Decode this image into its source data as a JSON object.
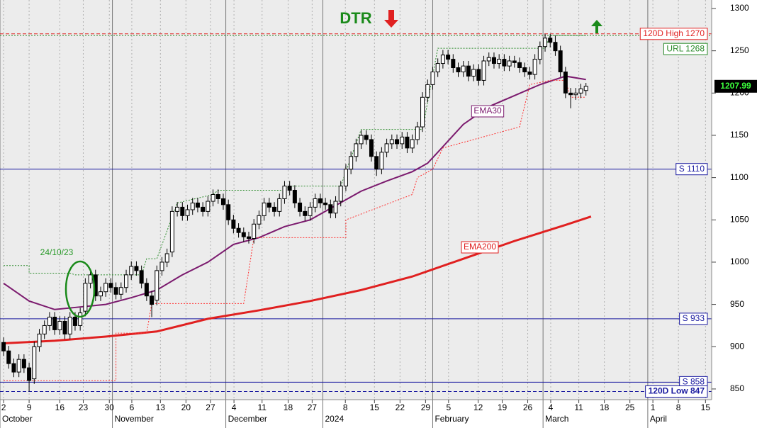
{
  "chart_data": {
    "type": "candlestick",
    "title": "DTR",
    "date_note": "24/10/23",
    "xlim": [
      -0.7,
      138.6
    ],
    "ylim": [
      838.2,
      1300
    ],
    "yticks": [
      850,
      900,
      950,
      1000,
      1050,
      1100,
      1150,
      1200,
      1250,
      1300
    ],
    "xticks": [
      {
        "value": 0,
        "label": "2"
      },
      {
        "value": 5,
        "label": "9"
      },
      {
        "value": 11,
        "label": "16"
      },
      {
        "value": 15.6,
        "label": "23"
      },
      {
        "value": 20.7,
        "label": "30"
      },
      {
        "value": 25.1,
        "label": "6"
      },
      {
        "value": 30.7,
        "label": "13"
      },
      {
        "value": 35.7,
        "label": "20"
      },
      {
        "value": 40.5,
        "label": "27"
      },
      {
        "value": 45.1,
        "label": "4"
      },
      {
        "value": 50.6,
        "label": "11"
      },
      {
        "value": 55.7,
        "label": "18"
      },
      {
        "value": 60.4,
        "label": "27"
      },
      {
        "value": 66.9,
        "label": "8"
      },
      {
        "value": 72.6,
        "label": "15"
      },
      {
        "value": 77.6,
        "label": "22"
      },
      {
        "value": 82.6,
        "label": "29"
      },
      {
        "value": 87.1,
        "label": "5"
      },
      {
        "value": 92.9,
        "label": "12"
      },
      {
        "value": 97.6,
        "label": "19"
      },
      {
        "value": 102.6,
        "label": "26"
      },
      {
        "value": 107.1,
        "label": "4"
      },
      {
        "value": 112.6,
        "label": "11"
      },
      {
        "value": 117.6,
        "label": "18"
      },
      {
        "value": 122.6,
        "label": "25"
      },
      {
        "value": 127.1,
        "label": "1"
      },
      {
        "value": 132.1,
        "label": "8"
      },
      {
        "value": 137.4,
        "label": "15"
      }
    ],
    "months": [
      {
        "value": -0.7,
        "label": "October"
      },
      {
        "value": 21.3,
        "label": "November"
      },
      {
        "value": 43.5,
        "label": "December"
      },
      {
        "value": 62.5,
        "label": "2024"
      },
      {
        "value": 84,
        "label": "February"
      },
      {
        "value": 105.6,
        "label": "March"
      },
      {
        "value": 126.1,
        "label": "April"
      }
    ],
    "up_color": "#ffffff",
    "down_color": "#000000",
    "open": [
      905,
      895,
      880,
      870,
      885,
      875,
      862,
      900,
      915,
      925,
      935,
      920,
      930,
      915,
      935,
      925,
      942,
      975,
      985,
      960,
      965,
      975,
      970,
      962,
      970,
      985,
      995,
      990,
      975,
      960,
      955,
      990,
      1000,
      1012,
      1060,
      1065,
      1055,
      1062,
      1070,
      1065,
      1060,
      1072,
      1080,
      1075,
      1068,
      1050,
      1040,
      1035,
      1030,
      1028,
      1045,
      1055,
      1070,
      1065,
      1060,
      1075,
      1090,
      1085,
      1070,
      1060,
      1055,
      1065,
      1075,
      1070,
      1068,
      1058,
      1072,
      1090,
      1110,
      1125,
      1140,
      1150,
      1145,
      1125,
      1110,
      1130,
      1140,
      1145,
      1140,
      1148,
      1135,
      1145,
      1160,
      1195,
      1210,
      1225,
      1235,
      1245,
      1240,
      1230,
      1225,
      1232,
      1220,
      1228,
      1215,
      1238,
      1242,
      1235,
      1240,
      1232,
      1238,
      1236,
      1230,
      1225,
      1222,
      1240,
      1255,
      1265,
      1260,
      1250,
      1225,
      1200,
      1198,
      1200,
      1203
    ],
    "high": [
      911,
      901,
      886,
      891,
      891,
      881,
      906,
      921,
      931,
      941,
      941,
      936,
      936,
      941,
      941,
      946,
      981,
      991,
      991,
      971,
      981,
      981,
      976,
      976,
      991,
      1001,
      1001,
      996,
      981,
      966,
      996,
      1006,
      1016,
      1066,
      1071,
      1071,
      1068,
      1076,
      1076,
      1071,
      1078,
      1086,
      1086,
      1081,
      1074,
      1056,
      1046,
      1041,
      1036,
      1051,
      1061,
      1076,
      1076,
      1071,
      1081,
      1096,
      1096,
      1091,
      1076,
      1066,
      1071,
      1081,
      1081,
      1076,
      1074,
      1078,
      1096,
      1116,
      1131,
      1146,
      1156,
      1156,
      1151,
      1131,
      1136,
      1146,
      1151,
      1151,
      1154,
      1154,
      1151,
      1166,
      1201,
      1216,
      1231,
      1241,
      1251,
      1251,
      1246,
      1236,
      1238,
      1238,
      1234,
      1234,
      1244,
      1248,
      1248,
      1246,
      1246,
      1244,
      1244,
      1242,
      1236,
      1231,
      1246,
      1261,
      1270,
      1270,
      1268,
      1256,
      1231,
      1206,
      1206,
      1211,
      1212
    ],
    "low": [
      889,
      874,
      864,
      864,
      869,
      847,
      856,
      894,
      909,
      919,
      914,
      914,
      909,
      909,
      919,
      919,
      936,
      969,
      954,
      954,
      959,
      964,
      956,
      956,
      964,
      979,
      984,
      969,
      954,
      935,
      949,
      984,
      994,
      1006,
      1054,
      1049,
      1049,
      1056,
      1059,
      1054,
      1054,
      1066,
      1069,
      1062,
      1044,
      1034,
      1029,
      1024,
      1022,
      1022,
      1039,
      1049,
      1059,
      1054,
      1054,
      1069,
      1079,
      1064,
      1054,
      1049,
      1049,
      1059,
      1064,
      1062,
      1052,
      1052,
      1066,
      1084,
      1104,
      1119,
      1134,
      1139,
      1119,
      1102,
      1104,
      1124,
      1134,
      1134,
      1134,
      1129,
      1129,
      1139,
      1154,
      1189,
      1204,
      1219,
      1229,
      1234,
      1224,
      1219,
      1219,
      1214,
      1214,
      1209,
      1209,
      1232,
      1229,
      1229,
      1226,
      1226,
      1230,
      1224,
      1219,
      1216,
      1216,
      1234,
      1249,
      1254,
      1244,
      1219,
      1194,
      1182,
      1192,
      1194,
      1197
    ],
    "close": [
      895,
      880,
      870,
      885,
      875,
      860,
      900,
      915,
      925,
      935,
      920,
      930,
      915,
      935,
      925,
      940,
      975,
      985,
      960,
      965,
      975,
      970,
      962,
      970,
      985,
      995,
      990,
      975,
      960,
      950,
      990,
      1000,
      1010,
      1060,
      1065,
      1055,
      1062,
      1070,
      1065,
      1060,
      1072,
      1080,
      1075,
      1068,
      1050,
      1040,
      1035,
      1030,
      1028,
      1045,
      1055,
      1070,
      1065,
      1060,
      1075,
      1090,
      1085,
      1070,
      1060,
      1055,
      1065,
      1075,
      1070,
      1068,
      1058,
      1072,
      1090,
      1110,
      1125,
      1140,
      1150,
      1145,
      1125,
      1110,
      1130,
      1140,
      1145,
      1140,
      1148,
      1135,
      1145,
      1160,
      1195,
      1210,
      1225,
      1235,
      1245,
      1240,
      1230,
      1225,
      1232,
      1220,
      1228,
      1215,
      1238,
      1242,
      1235,
      1240,
      1232,
      1238,
      1236,
      1230,
      1225,
      1222,
      1240,
      1255,
      1265,
      1260,
      1250,
      1225,
      1200,
      1198,
      1200,
      1205,
      1207.99
    ],
    "lines": [
      {
        "name": "EMA30",
        "color": "#7b1a6e",
        "style": "solid",
        "width": 2,
        "x": [
          0,
          5,
          10,
          15,
          20,
          25,
          30,
          35,
          40,
          45,
          50,
          55,
          60,
          65,
          70,
          75,
          80,
          83,
          85,
          90,
          95,
          100,
          105,
          110,
          114
        ],
        "values": [
          975,
          954,
          944,
          947,
          950,
          958,
          967,
          985,
          1000,
          1021,
          1029,
          1042,
          1050,
          1067,
          1084,
          1096,
          1107,
          1117,
          1130,
          1163,
          1184,
          1197,
          1210,
          1220,
          1216
        ]
      },
      {
        "name": "EMA200",
        "color": "#e02020",
        "style": "solid",
        "width": 3,
        "x": [
          0,
          10,
          20,
          30,
          40,
          50,
          60,
          70,
          80,
          90,
          100,
          110,
          115
        ],
        "values": [
          904,
          907,
          912,
          918,
          933,
          943,
          954,
          967,
          983,
          1004,
          1025,
          1044,
          1054
        ]
      },
      {
        "color": "#ff3030",
        "style": "dotted",
        "width": 1,
        "x": [
          0,
          22,
          22,
          28,
          29,
          47,
          49,
          67,
          67,
          80,
          81,
          84,
          86,
          101,
          102,
          103,
          107,
          110,
          111,
          114
        ],
        "values": [
          860,
          860,
          916,
          916,
          951,
          951,
          1029,
          1029,
          1050,
          1080,
          1100,
          1110,
          1135,
          1160,
          1185,
          1210,
          1215,
          1215,
          1195,
          1195
        ]
      },
      {
        "color": "#2a8a2a",
        "style": "dotted",
        "width": 1,
        "x": [
          0,
          5,
          5,
          13,
          14,
          27,
          28,
          30,
          34,
          41,
          42,
          55,
          56,
          66,
          70,
          82,
          85,
          106,
          107,
          114
        ],
        "values": [
          996,
          996,
          987,
          987,
          985,
          985,
          1004,
          1004,
          1070,
          1080,
          1085,
          1085,
          1090,
          1090,
          1157,
          1157,
          1253,
          1253,
          1268,
          1268
        ]
      }
    ],
    "levels": [
      {
        "value": 1270,
        "label": "120D High 1270",
        "color": "#e02020",
        "style": "dashed"
      },
      {
        "value": 1268,
        "label": "URL 1268",
        "color": "#2a8a2a",
        "style": "dotted"
      },
      {
        "value": 1110,
        "label": "S 1110",
        "color": "#1a1aa0",
        "style": "solid"
      },
      {
        "value": 933,
        "label": "S 933",
        "color": "#1a1aa0",
        "style": "solid"
      },
      {
        "value": 858,
        "label": "S 858",
        "color": "#1a1aa0",
        "style": "solid"
      },
      {
        "value": 847,
        "label": "120D Low 847",
        "color": "#1a1aa0",
        "style": "dashed"
      }
    ]
  }
}
